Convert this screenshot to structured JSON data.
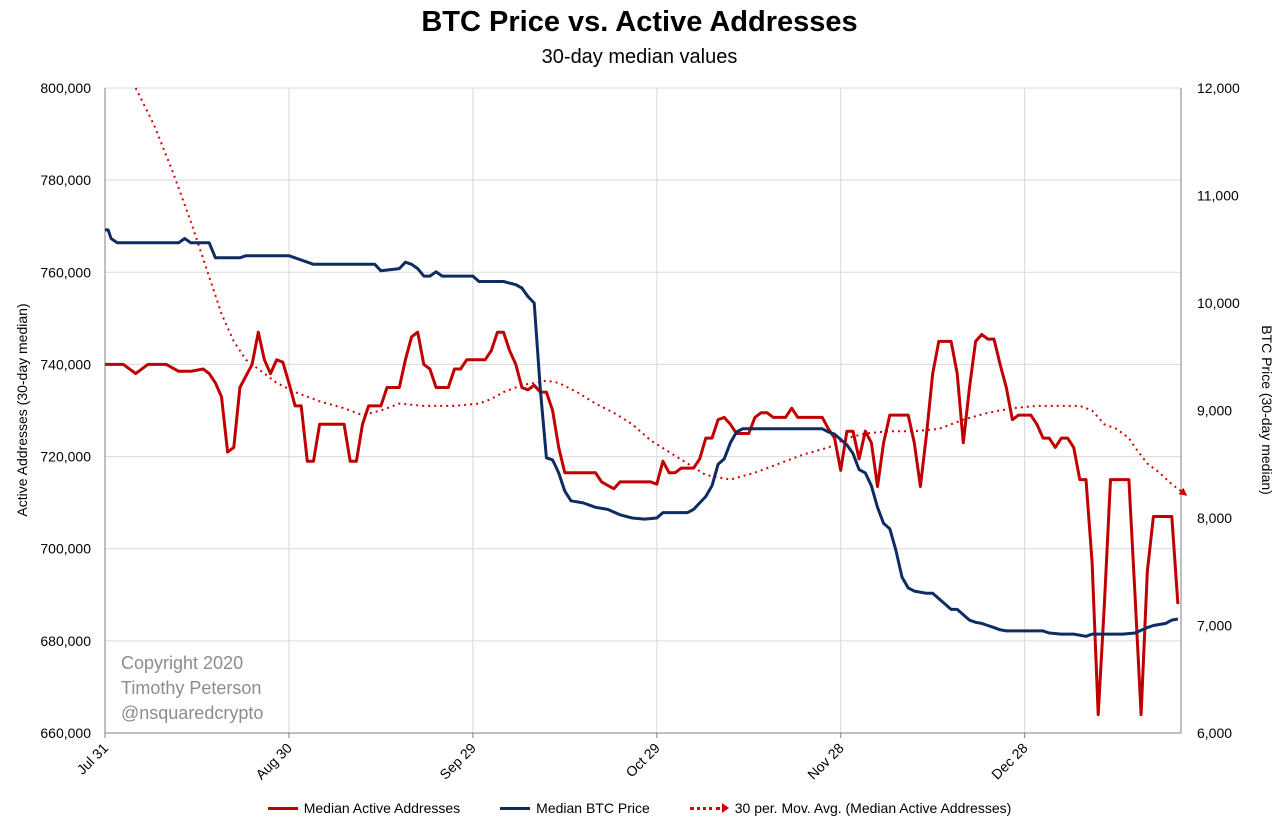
{
  "chart_data": {
    "type": "line",
    "title": "BTC Price vs. Active Addresses",
    "subtitle": "30-day median values",
    "ylabel": "Active Addresses (30-day median)",
    "y2label": "BTC Price (30-day median)",
    "ylim": [
      660000,
      800000
    ],
    "y2lim": [
      6000,
      12000
    ],
    "y_ticks": [
      "660,000",
      "680,000",
      "700,000",
      "720,000",
      "740,000",
      "760,000",
      "780,000",
      "800,000"
    ],
    "y2_ticks": [
      "6,000",
      "7,000",
      "8,000",
      "9,000",
      "10,000",
      "11,000",
      "12,000"
    ],
    "x_ticks": [
      {
        "day": 0,
        "label": "Jul 31"
      },
      {
        "day": 30,
        "label": "Aug 30"
      },
      {
        "day": 60,
        "label": "Sep 29"
      },
      {
        "day": 90,
        "label": "Oct 29"
      },
      {
        "day": 120,
        "label": "Nov 28"
      },
      {
        "day": 150,
        "label": "Dec 28"
      }
    ],
    "x_max_day": 172,
    "grid": true,
    "legend": "bottom",
    "series": [
      {
        "name": "Median Active Addresses",
        "axis": "left",
        "color": "#c00000",
        "style": "solid",
        "points": [
          [
            0,
            740000
          ],
          [
            3,
            740000
          ],
          [
            5,
            738000
          ],
          [
            7,
            740000
          ],
          [
            10,
            740000
          ],
          [
            12,
            738500
          ],
          [
            14,
            738500
          ],
          [
            16,
            739000
          ],
          [
            17,
            738000
          ],
          [
            18,
            736000
          ],
          [
            19,
            733000
          ],
          [
            20,
            721000
          ],
          [
            21,
            722000
          ],
          [
            22,
            735000
          ],
          [
            24,
            740000
          ],
          [
            25,
            747000
          ],
          [
            26,
            741000
          ],
          [
            27,
            738000
          ],
          [
            28,
            741000
          ],
          [
            29,
            740500
          ],
          [
            30,
            736000
          ],
          [
            31,
            731000
          ],
          [
            32,
            731000
          ],
          [
            33,
            719000
          ],
          [
            34,
            719000
          ],
          [
            35,
            727000
          ],
          [
            39,
            727000
          ],
          [
            40,
            719000
          ],
          [
            41,
            719000
          ],
          [
            42,
            727000
          ],
          [
            43,
            731000
          ],
          [
            45,
            731000
          ],
          [
            46,
            735000
          ],
          [
            48,
            735000
          ],
          [
            49,
            741000
          ],
          [
            50,
            746000
          ],
          [
            51,
            747000
          ],
          [
            52,
            740000
          ],
          [
            53,
            739000
          ],
          [
            54,
            735000
          ],
          [
            56,
            735000
          ],
          [
            57,
            739000
          ],
          [
            58,
            739000
          ],
          [
            59,
            741000
          ],
          [
            62,
            741000
          ],
          [
            63,
            743000
          ],
          [
            64,
            747000
          ],
          [
            65,
            747000
          ],
          [
            66,
            743000
          ],
          [
            67,
            740000
          ],
          [
            68,
            735000
          ],
          [
            69,
            734500
          ],
          [
            70,
            735500
          ],
          [
            71,
            734000
          ],
          [
            72,
            734000
          ],
          [
            73,
            730000
          ],
          [
            74,
            722000
          ],
          [
            75,
            716500
          ],
          [
            80,
            716500
          ],
          [
            81,
            714500
          ],
          [
            83,
            713000
          ],
          [
            84,
            714500
          ],
          [
            89,
            714500
          ],
          [
            90,
            714000
          ],
          [
            91,
            719000
          ],
          [
            92,
            716500
          ],
          [
            93,
            716500
          ],
          [
            94,
            717500
          ],
          [
            96,
            717500
          ],
          [
            97,
            719500
          ],
          [
            98,
            724000
          ],
          [
            99,
            724000
          ],
          [
            100,
            728000
          ],
          [
            101,
            728500
          ],
          [
            102,
            727000
          ],
          [
            103,
            725000
          ],
          [
            105,
            725000
          ],
          [
            106,
            728500
          ],
          [
            107,
            729500
          ],
          [
            108,
            729500
          ],
          [
            109,
            728500
          ],
          [
            111,
            728500
          ],
          [
            112,
            730500
          ],
          [
            113,
            728500
          ],
          [
            117,
            728500
          ],
          [
            118,
            726000
          ],
          [
            119,
            724000
          ],
          [
            120,
            717000
          ],
          [
            121,
            725500
          ],
          [
            122,
            725500
          ],
          [
            123,
            719500
          ],
          [
            124,
            725500
          ],
          [
            125,
            723000
          ],
          [
            126,
            713500
          ],
          [
            127,
            723000
          ],
          [
            128,
            729000
          ],
          [
            131,
            729000
          ],
          [
            132,
            723000
          ],
          [
            133,
            713500
          ],
          [
            134,
            725000
          ],
          [
            135,
            738000
          ],
          [
            136,
            745000
          ],
          [
            138,
            745000
          ],
          [
            139,
            738000
          ],
          [
            140,
            723000
          ],
          [
            141,
            735000
          ],
          [
            142,
            745000
          ],
          [
            143,
            746500
          ],
          [
            144,
            745500
          ],
          [
            145,
            745500
          ],
          [
            146,
            740000
          ],
          [
            147,
            735000
          ],
          [
            148,
            728000
          ],
          [
            149,
            729000
          ],
          [
            151,
            729000
          ],
          [
            152,
            727000
          ],
          [
            153,
            724000
          ],
          [
            154,
            724000
          ],
          [
            155,
            722000
          ],
          [
            156,
            724000
          ],
          [
            157,
            724000
          ],
          [
            158,
            722000
          ],
          [
            159,
            715000
          ],
          [
            160,
            715000
          ],
          [
            161,
            697000
          ],
          [
            162,
            664000
          ],
          [
            163,
            688000
          ],
          [
            164,
            715000
          ],
          [
            167,
            715000
          ],
          [
            168,
            690000
          ],
          [
            169,
            664000
          ],
          [
            170,
            695000
          ],
          [
            171,
            707000
          ],
          [
            174,
            707000
          ],
          [
            175,
            688000
          ]
        ]
      },
      {
        "name": "Median BTC Price",
        "axis": "right",
        "color": "#0f2b63",
        "style": "solid",
        "points": [
          [
            0,
            10680
          ],
          [
            0.5,
            10680
          ],
          [
            1,
            10600
          ],
          [
            2,
            10560
          ],
          [
            10,
            10560
          ],
          [
            12,
            10560
          ],
          [
            13,
            10600
          ],
          [
            14,
            10560
          ],
          [
            17,
            10560
          ],
          [
            18,
            10420
          ],
          [
            22,
            10420
          ],
          [
            23,
            10440
          ],
          [
            30,
            10440
          ],
          [
            32,
            10400
          ],
          [
            34,
            10360
          ],
          [
            44,
            10360
          ],
          [
            45,
            10300
          ],
          [
            48,
            10320
          ],
          [
            49,
            10380
          ],
          [
            50,
            10360
          ],
          [
            51,
            10320
          ],
          [
            52,
            10250
          ],
          [
            53,
            10250
          ],
          [
            54,
            10290
          ],
          [
            55,
            10250
          ],
          [
            60,
            10250
          ],
          [
            61,
            10200
          ],
          [
            65,
            10200
          ],
          [
            67,
            10170
          ],
          [
            68,
            10140
          ],
          [
            69,
            10060
          ],
          [
            70,
            10000
          ],
          [
            71,
            9200
          ],
          [
            72,
            8560
          ],
          [
            73,
            8540
          ],
          [
            74,
            8420
          ],
          [
            75,
            8250
          ],
          [
            76,
            8160
          ],
          [
            78,
            8140
          ],
          [
            80,
            8100
          ],
          [
            82,
            8080
          ],
          [
            84,
            8030
          ],
          [
            86,
            8000
          ],
          [
            88,
            7990
          ],
          [
            90,
            8000
          ],
          [
            91,
            8050
          ],
          [
            95,
            8050
          ],
          [
            96,
            8080
          ],
          [
            97,
            8140
          ],
          [
            98,
            8200
          ],
          [
            99,
            8300
          ],
          [
            100,
            8500
          ],
          [
            101,
            8550
          ],
          [
            102,
            8700
          ],
          [
            103,
            8800
          ],
          [
            104,
            8830
          ],
          [
            117,
            8830
          ],
          [
            118,
            8800
          ],
          [
            119,
            8780
          ],
          [
            120,
            8730
          ],
          [
            121,
            8680
          ],
          [
            122,
            8600
          ],
          [
            123,
            8450
          ],
          [
            124,
            8420
          ],
          [
            125,
            8300
          ],
          [
            126,
            8100
          ],
          [
            127,
            7950
          ],
          [
            128,
            7900
          ],
          [
            129,
            7700
          ],
          [
            130,
            7450
          ],
          [
            131,
            7350
          ],
          [
            132,
            7320
          ],
          [
            134,
            7300
          ],
          [
            135,
            7300
          ],
          [
            136,
            7250
          ],
          [
            137,
            7200
          ],
          [
            138,
            7150
          ],
          [
            139,
            7150
          ],
          [
            140,
            7100
          ],
          [
            141,
            7050
          ],
          [
            142,
            7030
          ],
          [
            143,
            7020
          ],
          [
            144,
            7000
          ],
          [
            145,
            6980
          ],
          [
            146,
            6960
          ],
          [
            147,
            6950
          ],
          [
            153,
            6950
          ],
          [
            154,
            6930
          ],
          [
            156,
            6920
          ],
          [
            158,
            6920
          ],
          [
            160,
            6900
          ],
          [
            161,
            6920
          ],
          [
            163,
            6920
          ],
          [
            166,
            6920
          ],
          [
            168,
            6930
          ],
          [
            170,
            6980
          ],
          [
            171,
            7000
          ],
          [
            173,
            7020
          ],
          [
            174,
            7050
          ],
          [
            175,
            7060
          ]
        ]
      },
      {
        "name": "30 per. Mov. Avg. (Median Active Addresses)",
        "axis": "left",
        "color": "#d40000",
        "style": "dotted",
        "points": [
          [
            5,
            800000
          ],
          [
            8,
            792000
          ],
          [
            11,
            782000
          ],
          [
            14,
            771000
          ],
          [
            17,
            759000
          ],
          [
            19,
            751000
          ],
          [
            21,
            745000
          ],
          [
            23,
            741000
          ],
          [
            26,
            738000
          ],
          [
            28,
            736000
          ],
          [
            31,
            734000
          ],
          [
            35,
            732000
          ],
          [
            39,
            730500
          ],
          [
            42,
            729000
          ],
          [
            45,
            730000
          ],
          [
            48,
            731500
          ],
          [
            52,
            731000
          ],
          [
            57,
            731000
          ],
          [
            61,
            731500
          ],
          [
            63,
            732500
          ],
          [
            65,
            734000
          ],
          [
            68,
            735500
          ],
          [
            72,
            736500
          ],
          [
            74,
            736000
          ],
          [
            77,
            734000
          ],
          [
            80,
            731500
          ],
          [
            83,
            729500
          ],
          [
            86,
            727000
          ],
          [
            89,
            723500
          ],
          [
            92,
            721000
          ],
          [
            95,
            718500
          ],
          [
            98,
            716000
          ],
          [
            102,
            715000
          ],
          [
            106,
            716500
          ],
          [
            110,
            718500
          ],
          [
            114,
            720500
          ],
          [
            118,
            722000
          ],
          [
            121,
            724000
          ],
          [
            124,
            725000
          ],
          [
            128,
            725500
          ],
          [
            132,
            725500
          ],
          [
            136,
            726000
          ],
          [
            140,
            728000
          ],
          [
            144,
            729500
          ],
          [
            148,
            730500
          ],
          [
            152,
            731000
          ],
          [
            156,
            731000
          ],
          [
            159,
            731000
          ],
          [
            161,
            730000
          ],
          [
            162,
            728500
          ],
          [
            163,
            727000
          ],
          [
            165,
            726000
          ],
          [
            167,
            724000
          ],
          [
            168,
            722000
          ],
          [
            170,
            718500
          ],
          [
            172,
            716500
          ],
          [
            174,
            714000
          ],
          [
            176,
            712000
          ]
        ]
      }
    ],
    "annotations": [
      "Copyright 2020",
      "Timothy Peterson",
      "@nsquaredcrypto"
    ]
  }
}
